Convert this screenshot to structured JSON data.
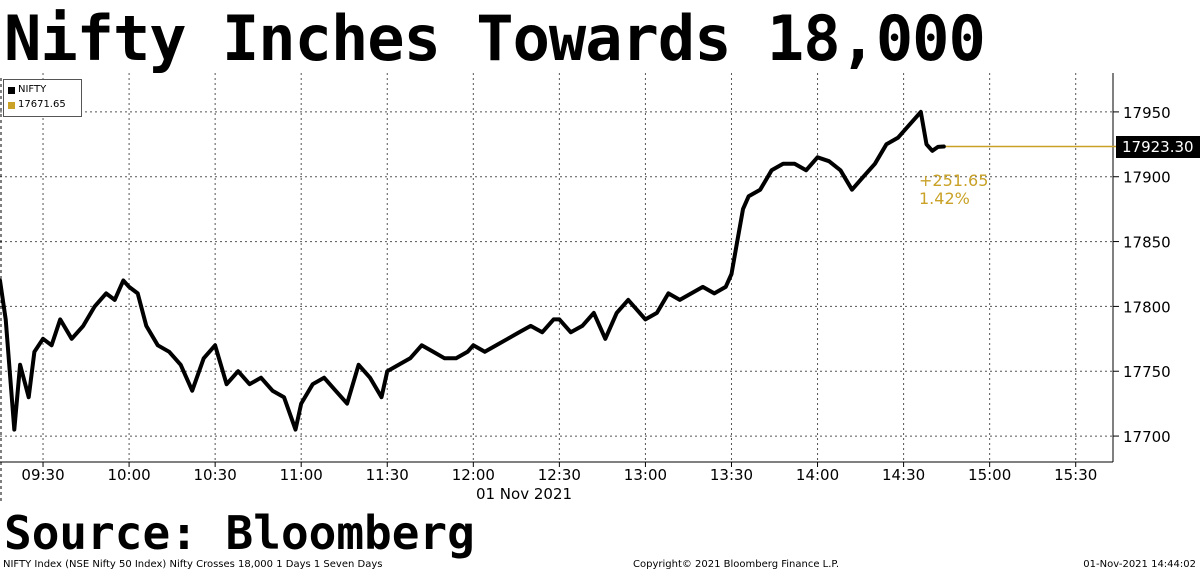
{
  "headline": "Nifty Inches Towards 18,000",
  "source": "Source: Bloomberg",
  "footer": {
    "left": "NIFTY Index (NSE Nifty 50 Index) Nifty Crosses 18,000 1 Days 1 Seven Days",
    "center": "Copyright© 2021 Bloomberg Finance L.P.",
    "right": "01-Nov-2021 14:44:02"
  },
  "legend": [
    {
      "label": "NIFTY",
      "color": "#000000"
    },
    {
      "label": "17671.65",
      "color": "#c9a227"
    }
  ],
  "last_value_tag": "17923.30",
  "change": {
    "abs": "+251.65",
    "pct": "1.42%"
  },
  "colors": {
    "line": "#000000",
    "accent": "#c9a227",
    "grid": "#555555"
  },
  "chart_data": {
    "type": "line",
    "title": "Nifty Inches Towards 18,000",
    "xlabel": "01 Nov 2021",
    "ylabel": "",
    "x_ticks": [
      "09:30",
      "10:00",
      "10:30",
      "11:00",
      "11:30",
      "12:00",
      "12:30",
      "13:00",
      "13:30",
      "14:00",
      "14:30",
      "15:00",
      "15:30"
    ],
    "y_ticks": [
      17700,
      17750,
      17800,
      17850,
      17900,
      17950
    ],
    "ylim": [
      17680,
      17980
    ],
    "xlim": [
      "09:15",
      "15:30"
    ],
    "grid": true,
    "legend_position": "top-left",
    "reference_line": {
      "value": 17923.3,
      "label": "17923.30"
    },
    "series": [
      {
        "name": "NIFTY",
        "x": [
          "09:15",
          "09:17",
          "09:20",
          "09:22",
          "09:25",
          "09:27",
          "09:30",
          "09:33",
          "09:36",
          "09:40",
          "09:44",
          "09:48",
          "09:52",
          "09:55",
          "09:58",
          "10:00",
          "10:03",
          "10:06",
          "10:10",
          "10:14",
          "10:18",
          "10:22",
          "10:26",
          "10:30",
          "10:34",
          "10:38",
          "10:42",
          "10:46",
          "10:50",
          "10:54",
          "10:58",
          "11:00",
          "11:04",
          "11:08",
          "11:12",
          "11:16",
          "11:20",
          "11:24",
          "11:28",
          "11:30",
          "11:34",
          "11:38",
          "11:42",
          "11:46",
          "11:50",
          "11:54",
          "11:58",
          "12:00",
          "12:04",
          "12:08",
          "12:12",
          "12:16",
          "12:20",
          "12:24",
          "12:28",
          "12:30",
          "12:34",
          "12:38",
          "12:42",
          "12:46",
          "12:50",
          "12:54",
          "12:58",
          "13:00",
          "13:04",
          "13:08",
          "13:12",
          "13:16",
          "13:20",
          "13:24",
          "13:28",
          "13:30",
          "13:32",
          "13:34",
          "13:36",
          "13:40",
          "13:44",
          "13:48",
          "13:52",
          "13:56",
          "14:00",
          "14:04",
          "14:08",
          "14:12",
          "14:16",
          "14:20",
          "14:24",
          "14:28",
          "14:32",
          "14:36",
          "14:38",
          "14:40",
          "14:42",
          "14:44"
        ],
        "values": [
          17820,
          17790,
          17705,
          17755,
          17730,
          17765,
          17775,
          17770,
          17790,
          17775,
          17785,
          17800,
          17810,
          17805,
          17820,
          17815,
          17810,
          17785,
          17770,
          17765,
          17755,
          17735,
          17760,
          17770,
          17740,
          17750,
          17740,
          17745,
          17735,
          17730,
          17705,
          17725,
          17740,
          17745,
          17735,
          17725,
          17755,
          17745,
          17730,
          17750,
          17755,
          17760,
          17770,
          17765,
          17760,
          17760,
          17765,
          17770,
          17765,
          17770,
          17775,
          17780,
          17785,
          17780,
          17790,
          17790,
          17780,
          17785,
          17795,
          17775,
          17795,
          17805,
          17795,
          17790,
          17795,
          17810,
          17805,
          17810,
          17815,
          17810,
          17815,
          17825,
          17850,
          17875,
          17885,
          17890,
          17905,
          17910,
          17910,
          17905,
          17915,
          17912,
          17905,
          17890,
          17900,
          17910,
          17925,
          17930,
          17940,
          17950,
          17925,
          17920,
          17923,
          17923.3
        ]
      }
    ]
  }
}
